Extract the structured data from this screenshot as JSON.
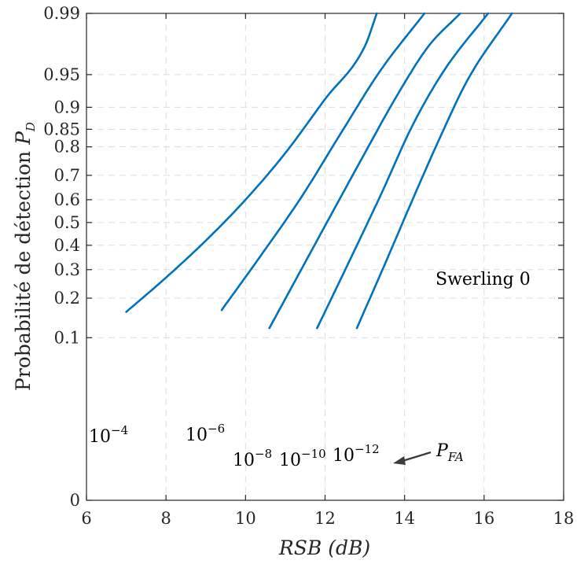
{
  "chart_data": {
    "type": "line",
    "title": "",
    "xlabel": "RSB (dB)",
    "ylabel": "Probabilité de détection P_D",
    "xlim": [
      6,
      18
    ],
    "ylim": [
      0,
      0.99
    ],
    "y_scale": "normal-probability",
    "grid": true,
    "line_color": "#0072BD",
    "x_ticks": [
      "6",
      "8",
      "10",
      "12",
      "14",
      "16",
      "18"
    ],
    "y_ticks": [
      "0",
      "0.1",
      "0.2",
      "0.3",
      "0.4",
      "0.5",
      "0.6",
      "0.7",
      "0.8",
      "0.85",
      "0.9",
      "0.95",
      "0.99"
    ],
    "series": [
      {
        "pfa_base": "10",
        "pfa_exp": "−4",
        "x": [
          7.0,
          8.0,
          9.0,
          10.0,
          11.0,
          12.0,
          13.0,
          13.3
        ],
        "y": [
          0.16,
          0.27,
          0.42,
          0.6,
          0.78,
          0.915,
          0.975,
          0.99
        ]
      },
      {
        "pfa_base": "10",
        "pfa_exp": "−6",
        "x": [
          9.4,
          10.4,
          11.4,
          12.4,
          13.4,
          14.5
        ],
        "y": [
          0.165,
          0.36,
          0.61,
          0.84,
          0.955,
          0.99
        ]
      },
      {
        "pfa_base": "10",
        "pfa_exp": "−8",
        "x": [
          10.6,
          11.4,
          12.2,
          13.0,
          13.8,
          14.6,
          15.4
        ],
        "y": [
          0.12,
          0.3,
          0.55,
          0.78,
          0.92,
          0.975,
          0.99
        ]
      },
      {
        "pfa_base": "10",
        "pfa_exp": "−10",
        "x": [
          11.8,
          12.6,
          13.4,
          14.2,
          15.0,
          16.1
        ],
        "y": [
          0.12,
          0.33,
          0.62,
          0.86,
          0.955,
          0.99
        ]
      },
      {
        "pfa_base": "10",
        "pfa_exp": "−12",
        "x": [
          12.8,
          13.5,
          14.2,
          14.9,
          15.6,
          16.7
        ],
        "y": [
          0.12,
          0.32,
          0.6,
          0.83,
          0.945,
          0.99
        ]
      }
    ],
    "annotations": {
      "model": "Swerling 0",
      "pfa_label": "P",
      "pfa_label_sub": "FA"
    }
  }
}
